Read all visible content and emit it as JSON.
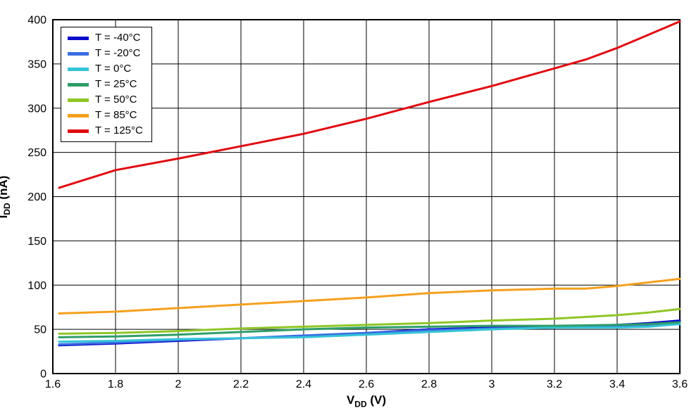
{
  "chart_data": {
    "type": "line",
    "title": "",
    "xlabel": {
      "pre": "V",
      "sub": "DD",
      "post": " (V)"
    },
    "ylabel": {
      "pre": "I",
      "sub": "DD",
      "post": " (nA)"
    },
    "xlim": [
      1.6,
      3.6
    ],
    "ylim": [
      0,
      400
    ],
    "grid": "on",
    "legend_position": "top-left",
    "x_ticks": [
      {
        "v": 1.6,
        "label": "1.6"
      },
      {
        "v": 1.8,
        "label": "1.8"
      },
      {
        "v": 2.0,
        "label": "2"
      },
      {
        "v": 2.2,
        "label": "2.2"
      },
      {
        "v": 2.4,
        "label": "2.4"
      },
      {
        "v": 2.6,
        "label": "2.6"
      },
      {
        "v": 2.8,
        "label": "2.8"
      },
      {
        "v": 3.0,
        "label": "3"
      },
      {
        "v": 3.2,
        "label": "3.2"
      },
      {
        "v": 3.4,
        "label": "3.4"
      },
      {
        "v": 3.6,
        "label": "3.6"
      }
    ],
    "y_ticks": [
      {
        "v": 0,
        "label": "0"
      },
      {
        "v": 50,
        "label": "50"
      },
      {
        "v": 100,
        "label": "100"
      },
      {
        "v": 150,
        "label": "150"
      },
      {
        "v": 200,
        "label": "200"
      },
      {
        "v": 250,
        "label": "250"
      },
      {
        "v": 300,
        "label": "300"
      },
      {
        "v": 350,
        "label": "350"
      },
      {
        "v": 400,
        "label": "400"
      }
    ],
    "series": [
      {
        "name": "t-minus-40",
        "label": "T = -40°C",
        "color": "#0a0acd",
        "x": [
          1.62,
          1.8,
          2.0,
          2.2,
          2.4,
          2.6,
          2.8,
          3.0,
          3.2,
          3.4,
          3.5,
          3.6
        ],
        "y": [
          32,
          34,
          37,
          40,
          42,
          46,
          50,
          52,
          53,
          55,
          57,
          60
        ]
      },
      {
        "name": "t-minus-20",
        "label": "T = -20°C",
        "color": "#3a6fe2",
        "x": [
          1.62,
          1.8,
          2.0,
          2.2,
          2.4,
          2.6,
          2.8,
          3.0,
          3.2,
          3.4,
          3.5,
          3.6
        ],
        "y": [
          33,
          35,
          38,
          40,
          43,
          46,
          49,
          51,
          52,
          54,
          55,
          58
        ]
      },
      {
        "name": "t-0",
        "label": "T = 0°C",
        "color": "#35c4d7",
        "x": [
          1.62,
          1.8,
          2.0,
          2.2,
          2.4,
          2.6,
          2.8,
          3.0,
          3.2,
          3.4,
          3.5,
          3.6
        ],
        "y": [
          36,
          37,
          39,
          40,
          41,
          44,
          47,
          50,
          52,
          52,
          53,
          56
        ]
      },
      {
        "name": "t-25",
        "label": "T = 25°C",
        "color": "#2e9e68",
        "x": [
          1.62,
          1.8,
          2.0,
          2.2,
          2.4,
          2.6,
          2.8,
          3.0,
          3.2,
          3.4,
          3.5,
          3.6
        ],
        "y": [
          41,
          42,
          44,
          47,
          50,
          52,
          53,
          54,
          54,
          55,
          56,
          58
        ]
      },
      {
        "name": "t-50",
        "label": "T = 50°C",
        "color": "#8fc625",
        "x": [
          1.62,
          1.8,
          2.0,
          2.2,
          2.4,
          2.6,
          2.8,
          3.0,
          3.2,
          3.4,
          3.5,
          3.6
        ],
        "y": [
          45,
          46,
          48,
          51,
          53,
          55,
          57,
          60,
          62,
          66,
          69,
          73
        ]
      },
      {
        "name": "t-85",
        "label": "T = 85°C",
        "color": "#f5a01e",
        "x": [
          1.62,
          1.8,
          2.0,
          2.2,
          2.4,
          2.6,
          2.8,
          3.0,
          3.2,
          3.3,
          3.4,
          3.6
        ],
        "y": [
          68,
          70,
          74,
          78,
          82,
          86,
          91,
          94,
          96,
          96,
          99,
          107
        ]
      },
      {
        "name": "t-125",
        "label": "T = 125°C",
        "color": "#e00a12",
        "x": [
          1.62,
          1.8,
          2.0,
          2.2,
          2.4,
          2.6,
          2.8,
          3.0,
          3.2,
          3.3,
          3.4,
          3.6
        ],
        "y": [
          210,
          230,
          243,
          257,
          271,
          288,
          307,
          325,
          345,
          355,
          368,
          398
        ]
      }
    ]
  }
}
